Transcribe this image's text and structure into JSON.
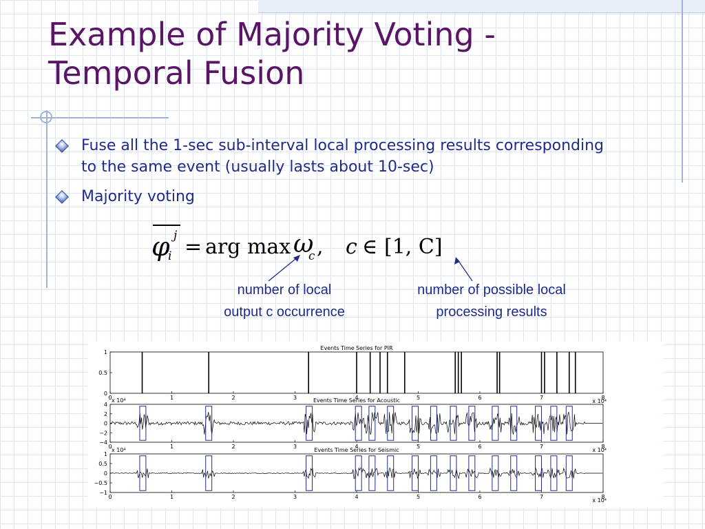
{
  "slide": {
    "title_line1": "Example of Majority Voting -",
    "title_line2": "Temporal Fusion",
    "bullets": [
      {
        "line1": "Fuse all the 1-sec sub-interval local processing results corresponding",
        "line2": "to the same event (usually lasts about 10-sec)"
      },
      {
        "line1": "Majority voting",
        "line2": ""
      }
    ],
    "formula": {
      "phi": "φ",
      "sup": "j",
      "sub": "i",
      "eq": "=",
      "argmax": "arg max",
      "omega": "ω",
      "omega_sub": "c",
      "comma": ",",
      "c": "c",
      "in": "∈",
      "range": "[1, C]"
    },
    "annotations": [
      {
        "line1": "number of local",
        "line2": "output c occurrence"
      },
      {
        "line1": "number of possible local",
        "line2": "processing results"
      }
    ]
  },
  "colors": {
    "title": "#5a1566",
    "text": "#1f2a8a",
    "grid": "#dfe6f3",
    "signal": "#1f2a8a"
  },
  "chart_data": [
    {
      "type": "line",
      "title": "Events Time Series for PIR",
      "xlim": [
        0,
        8
      ],
      "ylim": [
        0,
        1
      ],
      "xticks": [
        "0",
        "1",
        "2",
        "3",
        "4",
        "5",
        "6",
        "7",
        "8"
      ],
      "yticks": [
        "0",
        "0.5",
        "1"
      ],
      "x_exponent": "x 10⁴",
      "events": [
        0.52,
        1.6,
        3.22,
        4.0,
        4.22,
        4.38,
        4.5,
        4.78,
        5.6,
        5.65,
        5.7,
        6.28,
        6.32,
        7.0,
        7.05,
        7.25,
        7.45,
        7.55
      ]
    },
    {
      "type": "line",
      "title": "Events Time Series for Acoustic",
      "xlim": [
        0,
        8
      ],
      "ylim": [
        -4,
        4
      ],
      "xticks": [
        "0",
        "1",
        "2",
        "3",
        "4",
        "5",
        "6",
        "7",
        "8"
      ],
      "yticks": [
        "−4",
        "−2",
        "0",
        "2",
        "4"
      ],
      "y_exponent": "x 10⁴",
      "x_exponent": "x 10⁴",
      "intervals": [
        [
          0.48,
          0.58
        ],
        [
          1.55,
          1.65
        ],
        [
          3.18,
          3.28
        ],
        [
          3.98,
          4.08
        ],
        [
          4.2,
          4.3
        ],
        [
          4.5,
          4.6
        ],
        [
          4.9,
          5.0
        ],
        [
          5.2,
          5.3
        ],
        [
          5.52,
          5.62
        ],
        [
          5.82,
          5.92
        ],
        [
          6.2,
          6.3
        ],
        [
          6.5,
          6.6
        ],
        [
          6.9,
          7.0
        ],
        [
          7.15,
          7.25
        ],
        [
          7.4,
          7.5
        ]
      ]
    },
    {
      "type": "line",
      "title": "Events Time Series for Seismic",
      "xlim": [
        0,
        8
      ],
      "ylim": [
        -1,
        1
      ],
      "xticks": [
        "0",
        "1",
        "2",
        "3",
        "4",
        "5",
        "6",
        "7",
        "8"
      ],
      "yticks": [
        "−1",
        "−0.5",
        "0",
        "0.5",
        "1"
      ],
      "y_exponent": "x 10⁴",
      "x_exponent": "x 10⁴",
      "intervals": [
        [
          0.48,
          0.58
        ],
        [
          1.55,
          1.65
        ],
        [
          3.18,
          3.28
        ],
        [
          3.98,
          4.08
        ],
        [
          4.2,
          4.3
        ],
        [
          4.5,
          4.6
        ],
        [
          4.9,
          5.0
        ],
        [
          5.2,
          5.3
        ],
        [
          5.52,
          5.62
        ],
        [
          5.82,
          5.92
        ],
        [
          6.2,
          6.3
        ],
        [
          6.5,
          6.6
        ],
        [
          6.9,
          7.0
        ],
        [
          7.15,
          7.25
        ],
        [
          7.4,
          7.5
        ]
      ]
    }
  ]
}
